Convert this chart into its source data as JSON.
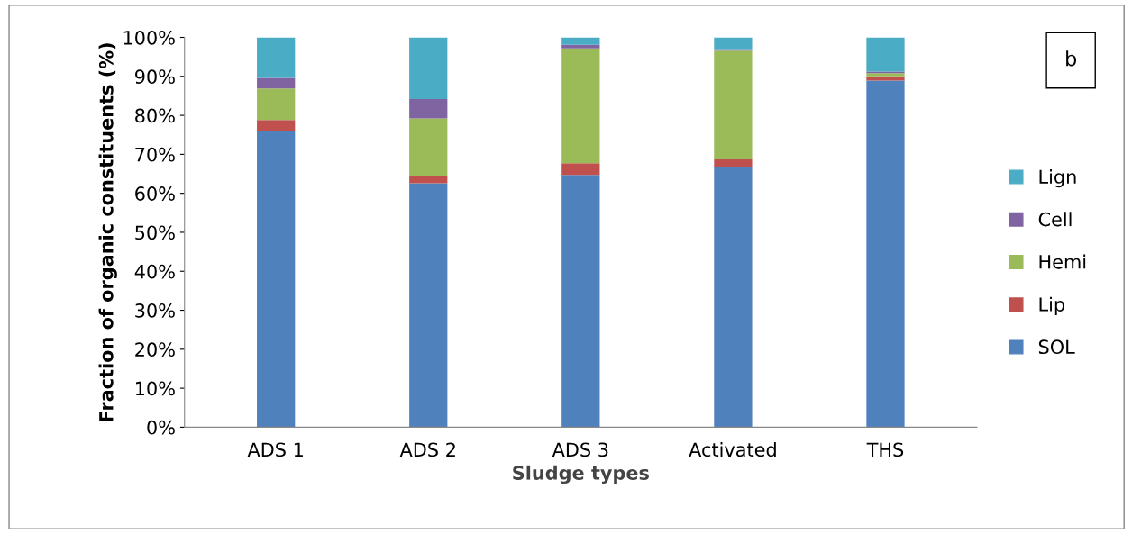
{
  "chart_data": {
    "type": "bar",
    "stacked": true,
    "xlabel": "Sludge types",
    "ylabel": "Fraction of organic constituents (%)",
    "categories": [
      "ADS 1",
      "ADS 2",
      "ADS 3",
      "Activated",
      "THS"
    ],
    "series": [
      {
        "name": "SOL",
        "color": "#4f81bd",
        "values": [
          76.1,
          62.6,
          64.7,
          66.6,
          88.9
        ]
      },
      {
        "name": "Lip",
        "color": "#c0504d",
        "values": [
          2.7,
          1.7,
          3.0,
          2.1,
          1.1
        ]
      },
      {
        "name": "Hemi",
        "color": "#9bbb59",
        "values": [
          8.1,
          14.9,
          29.5,
          27.9,
          0.8
        ]
      },
      {
        "name": "Cell",
        "color": "#8064a2",
        "values": [
          2.7,
          5.0,
          0.9,
          0.4,
          0.4
        ]
      },
      {
        "name": "Lign",
        "color": "#4bacc6",
        "values": [
          10.4,
          15.8,
          1.9,
          3.0,
          8.8
        ]
      }
    ],
    "ylim": [
      0,
      100
    ],
    "yticks": [
      {
        "value": 0,
        "label": "0%"
      },
      {
        "value": 10,
        "label": "10%"
      },
      {
        "value": 20,
        "label": "20%"
      },
      {
        "value": 30,
        "label": "30%"
      },
      {
        "value": 40,
        "label": "40%"
      },
      {
        "value": 50,
        "label": "50%"
      },
      {
        "value": 60,
        "label": "60%"
      },
      {
        "value": 70,
        "label": "70%"
      },
      {
        "value": 80,
        "label": "80%"
      },
      {
        "value": 90,
        "label": "90%"
      },
      {
        "value": 100,
        "label": "100%"
      }
    ],
    "annotations": [
      "b"
    ],
    "grid": false,
    "legend": "right"
  }
}
